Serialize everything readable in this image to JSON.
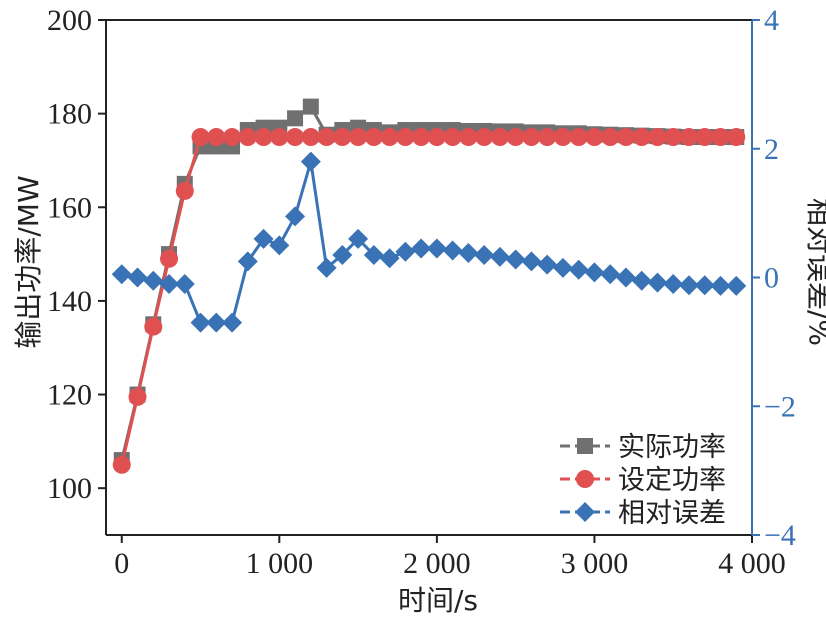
{
  "chart_data": {
    "type": "line",
    "xlabel": "时间/s",
    "ylabel_left": "输出功率/MW",
    "ylabel_right": "相对误差/%",
    "xlim": [
      -100,
      4000
    ],
    "ylim_left": [
      90,
      200
    ],
    "ylim_right": [
      -4,
      4
    ],
    "x_ticks": [
      0,
      1000,
      2000,
      3000,
      4000
    ],
    "x_tick_labels": [
      "0",
      "1 000",
      "2 000",
      "3 000",
      "4 000"
    ],
    "y_left_ticks": [
      100,
      120,
      140,
      160,
      180,
      200
    ],
    "y_left_tick_labels": [
      "100",
      "120",
      "140",
      "160",
      "180",
      "200"
    ],
    "y_right_ticks": [
      -4,
      -2,
      0,
      2,
      4
    ],
    "y_right_tick_labels": [
      "−4",
      "−2",
      "0",
      "2",
      "4"
    ],
    "legend_position": "bottom-right",
    "series": [
      {
        "name": "实际功率",
        "axis": "left",
        "color": "#707070",
        "marker": "square",
        "x": [
          0,
          100,
          200,
          300,
          400,
          500,
          600,
          700,
          800,
          900,
          1000,
          1100,
          1200,
          1300,
          1400,
          1500,
          1600,
          1700,
          1800,
          1900,
          2000,
          2100,
          2200,
          2300,
          2400,
          2500,
          2600,
          2700,
          2800,
          2900,
          3000,
          3100,
          3200,
          3300,
          3400,
          3500,
          3600,
          3700,
          3800,
          3900
        ],
        "values": [
          106,
          120,
          135,
          150,
          165,
          173,
          173,
          173,
          176.5,
          177,
          177,
          179,
          181.5,
          175.5,
          176.5,
          177,
          176.5,
          176,
          176.5,
          176.5,
          176.5,
          176.5,
          176.3,
          176.3,
          176.2,
          176.2,
          176,
          176,
          175.8,
          175.8,
          175.6,
          175.5,
          175.4,
          175.3,
          175.2,
          175.1,
          175,
          175,
          175,
          175
        ]
      },
      {
        "name": "设定功率",
        "axis": "left",
        "color": "#e05050",
        "marker": "circle",
        "x": [
          0,
          100,
          200,
          300,
          400,
          500,
          600,
          700,
          800,
          900,
          1000,
          1100,
          1200,
          1300,
          1400,
          1500,
          1600,
          1700,
          1800,
          1900,
          2000,
          2100,
          2200,
          2300,
          2400,
          2500,
          2600,
          2700,
          2800,
          2900,
          3000,
          3100,
          3200,
          3300,
          3400,
          3500,
          3600,
          3700,
          3800,
          3900
        ],
        "values": [
          105,
          119.5,
          134.5,
          149,
          163.5,
          175,
          175,
          175,
          175,
          175,
          175,
          175,
          175,
          175,
          175,
          175,
          175,
          175,
          175,
          175,
          175,
          175,
          175,
          175,
          175,
          175,
          175,
          175,
          175,
          175,
          175,
          175,
          175,
          175,
          175,
          175,
          175,
          175,
          175,
          175
        ]
      },
      {
        "name": "相对误差",
        "axis": "right",
        "color": "#3a73b5",
        "marker": "diamond",
        "x": [
          0,
          100,
          200,
          300,
          400,
          500,
          600,
          700,
          800,
          900,
          1000,
          1100,
          1200,
          1300,
          1400,
          1500,
          1600,
          1700,
          1800,
          1900,
          2000,
          2100,
          2200,
          2300,
          2400,
          2500,
          2600,
          2700,
          2800,
          2900,
          3000,
          3100,
          3200,
          3300,
          3400,
          3500,
          3600,
          3700,
          3800,
          3900
        ],
        "values": [
          0.05,
          0.0,
          -0.05,
          -0.1,
          -0.1,
          -0.7,
          -0.7,
          -0.7,
          0.25,
          0.6,
          0.5,
          0.95,
          1.8,
          0.15,
          0.35,
          0.6,
          0.35,
          0.3,
          0.4,
          0.45,
          0.45,
          0.42,
          0.38,
          0.35,
          0.32,
          0.28,
          0.25,
          0.2,
          0.15,
          0.12,
          0.08,
          0.05,
          0.0,
          -0.05,
          -0.08,
          -0.1,
          -0.12,
          -0.12,
          -0.13,
          -0.13
        ]
      }
    ]
  }
}
